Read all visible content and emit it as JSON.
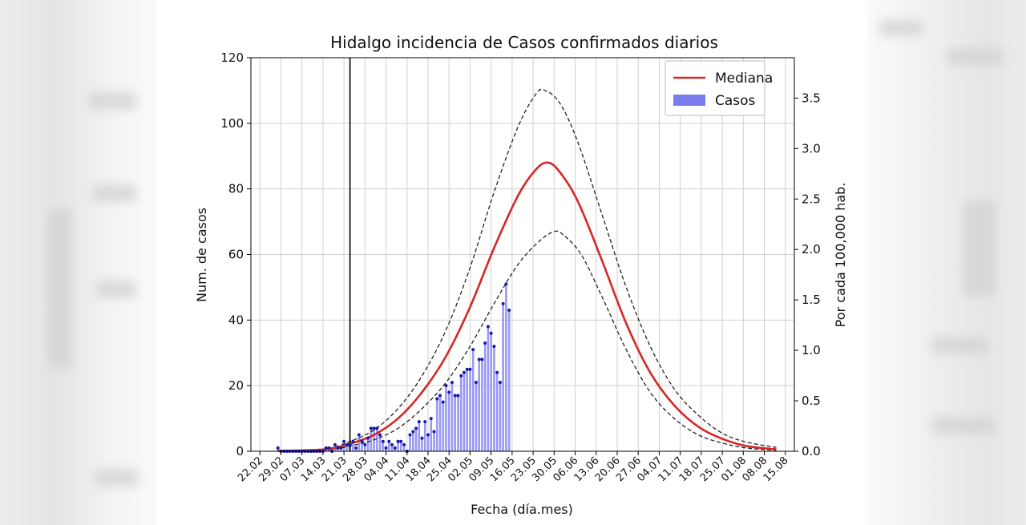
{
  "chart_data": {
    "type": "bar",
    "title": "Hidalgo incidencia de Casos confirmados diarios",
    "xlabel": "Fecha (día.mes)",
    "ylabel": "Num. de casos",
    "y2label": "Por cada 100,000 hab.",
    "ylim": [
      0,
      120
    ],
    "y2lim": [
      0,
      3.9
    ],
    "xlim": [
      "2020-02-19",
      "2020-08-18"
    ],
    "y_ticks": [
      "0",
      "20",
      "40",
      "60",
      "80",
      "100",
      "120"
    ],
    "y2_ticks": [
      "0.0",
      "0.5",
      "1.0",
      "1.5",
      "2.0",
      "2.5",
      "3.0",
      "3.5"
    ],
    "x_ticks": [
      {
        "date": "2020-02-22",
        "label": "22.02"
      },
      {
        "date": "2020-02-29",
        "label": "29.02"
      },
      {
        "date": "2020-03-07",
        "label": "07.03"
      },
      {
        "date": "2020-03-14",
        "label": "14.03"
      },
      {
        "date": "2020-03-21",
        "label": "21.03"
      },
      {
        "date": "2020-03-28",
        "label": "28.03"
      },
      {
        "date": "2020-04-04",
        "label": "04.04"
      },
      {
        "date": "2020-04-11",
        "label": "11.04"
      },
      {
        "date": "2020-04-18",
        "label": "18.04"
      },
      {
        "date": "2020-04-25",
        "label": "25.04"
      },
      {
        "date": "2020-05-02",
        "label": "02.05"
      },
      {
        "date": "2020-05-09",
        "label": "09.05"
      },
      {
        "date": "2020-05-16",
        "label": "16.05"
      },
      {
        "date": "2020-05-23",
        "label": "23.05"
      },
      {
        "date": "2020-05-30",
        "label": "30.05"
      },
      {
        "date": "2020-06-06",
        "label": "06.06"
      },
      {
        "date": "2020-06-13",
        "label": "13.06"
      },
      {
        "date": "2020-06-20",
        "label": "20.06"
      },
      {
        "date": "2020-06-27",
        "label": "27.06"
      },
      {
        "date": "2020-07-04",
        "label": "04.07"
      },
      {
        "date": "2020-07-11",
        "label": "11.07"
      },
      {
        "date": "2020-07-18",
        "label": "18.07"
      },
      {
        "date": "2020-07-25",
        "label": "25.07"
      },
      {
        "date": "2020-08-01",
        "label": "01.08"
      },
      {
        "date": "2020-08-08",
        "label": "08.08"
      },
      {
        "date": "2020-08-15",
        "label": "15.08"
      }
    ],
    "vline_date": "2020-03-23",
    "legend": {
      "position": "top-right",
      "entries": [
        {
          "label": "Mediana",
          "color": "#d62728",
          "kind": "line"
        },
        {
          "label": "Casos",
          "color": "#7b7bf0",
          "kind": "patch"
        }
      ]
    },
    "colors": {
      "bars": "#8f8ff2",
      "points": "#1a1aa8",
      "median": "#d62728",
      "bounds": "#222222",
      "vline": "#000000"
    },
    "cases": {
      "start_date": "2020-02-28",
      "values": [
        1,
        0,
        0,
        0,
        0,
        0,
        0,
        0,
        0,
        0,
        0,
        0,
        0,
        0,
        0,
        0,
        1,
        1,
        0,
        2,
        1,
        1,
        3,
        2,
        2,
        3,
        1,
        5,
        3,
        2,
        4,
        7,
        7,
        7,
        5,
        3,
        1,
        3,
        2,
        1,
        3,
        3,
        2,
        0,
        5,
        6,
        7,
        9,
        4,
        9,
        5,
        10,
        6,
        16,
        17,
        15,
        20,
        18,
        21,
        17,
        17,
        23,
        24,
        25,
        25,
        31,
        21,
        28,
        28,
        33,
        38,
        36,
        32,
        24,
        21,
        45,
        51,
        43
      ]
    },
    "median_curve": {
      "dates": [
        "2020-02-28",
        "2020-03-15",
        "2020-03-23",
        "2020-03-31",
        "2020-04-08",
        "2020-04-16",
        "2020-04-24",
        "2020-05-02",
        "2020-05-10",
        "2020-05-18",
        "2020-05-24",
        "2020-05-28",
        "2020-06-01",
        "2020-06-07",
        "2020-06-15",
        "2020-06-23",
        "2020-07-01",
        "2020-07-09",
        "2020-07-17",
        "2020-07-25",
        "2020-08-02",
        "2020-08-12"
      ],
      "values": [
        0.1,
        0.6,
        2.3,
        5,
        10,
        18,
        29,
        44,
        62,
        78,
        86,
        88,
        85,
        76,
        58,
        39,
        24,
        14,
        7.5,
        3.8,
        1.6,
        0.6
      ]
    },
    "upper_curve": {
      "dates": [
        "2020-02-28",
        "2020-03-15",
        "2020-03-23",
        "2020-03-31",
        "2020-04-08",
        "2020-04-16",
        "2020-04-24",
        "2020-05-02",
        "2020-05-10",
        "2020-05-18",
        "2020-05-24",
        "2020-05-27",
        "2020-06-01",
        "2020-06-07",
        "2020-06-15",
        "2020-06-23",
        "2020-07-01",
        "2020-07-09",
        "2020-07-17",
        "2020-07-25",
        "2020-08-02",
        "2020-08-12"
      ],
      "values": [
        0.15,
        0.8,
        3,
        6.5,
        13,
        23,
        37,
        56,
        79,
        99,
        109,
        110,
        106,
        94,
        72,
        50,
        32,
        19,
        11,
        5.5,
        2.8,
        1.2
      ]
    },
    "lower_curve": {
      "dates": [
        "2020-02-28",
        "2020-03-15",
        "2020-03-23",
        "2020-03-31",
        "2020-04-08",
        "2020-04-16",
        "2020-04-24",
        "2020-05-02",
        "2020-05-10",
        "2020-05-18",
        "2020-05-25",
        "2020-05-30",
        "2020-06-02",
        "2020-06-08",
        "2020-06-15",
        "2020-06-23",
        "2020-07-01",
        "2020-07-09",
        "2020-07-17",
        "2020-07-25",
        "2020-08-02",
        "2020-08-12"
      ],
      "values": [
        0.05,
        0.4,
        1.6,
        3.5,
        7,
        13,
        21,
        32,
        45,
        57,
        64,
        67,
        66,
        60,
        47,
        31,
        18,
        10,
        5,
        2.5,
        1.0,
        0.3
      ]
    }
  }
}
